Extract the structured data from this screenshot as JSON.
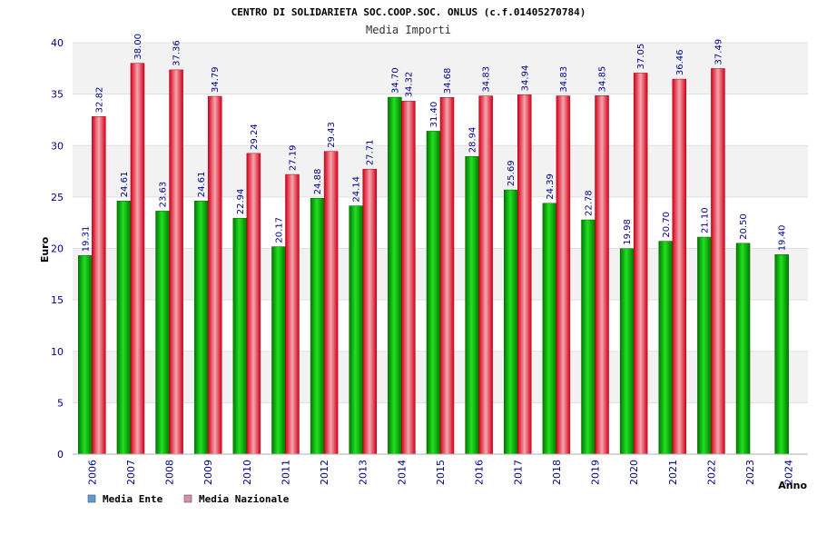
{
  "chart_data": {
    "type": "bar",
    "title": "CENTRO DI SOLIDARIETA SOC.COOP.SOC. ONLUS (c.f.01405270784)",
    "subtitle": "Media Importi",
    "xlabel": "Anno",
    "ylabel": "Euro",
    "ylim": [
      0,
      40
    ],
    "yticks": [
      0,
      5,
      10,
      15,
      20,
      25,
      30,
      35,
      40
    ],
    "grid": true,
    "legend_position": "bottom-left",
    "categories": [
      "2006",
      "2007",
      "2008",
      "2009",
      "2010",
      "2011",
      "2012",
      "2013",
      "2014",
      "2015",
      "2016",
      "2017",
      "2018",
      "2019",
      "2020",
      "2021",
      "2022",
      "2023",
      "2024"
    ],
    "series": [
      {
        "name": "Media Ente",
        "legend_color": "#5b9bd5",
        "bar_color": "#00a000",
        "values": [
          19.31,
          24.61,
          23.63,
          24.61,
          22.94,
          20.17,
          24.88,
          24.14,
          34.7,
          31.4,
          28.94,
          25.69,
          24.39,
          22.78,
          19.98,
          20.7,
          21.1,
          20.5,
          19.4
        ],
        "labels": [
          "19.31",
          "24.61",
          "23.63",
          "24.61",
          "22.94",
          "20.17",
          "24.88",
          "24.14",
          "34.70",
          "31.40",
          "28.94",
          "25.69",
          "24.39",
          "22.78",
          "19.98",
          "20.70",
          "21.10",
          "20.50",
          "19.40"
        ]
      },
      {
        "name": "Media Nazionale",
        "legend_color": "#d98cb3",
        "bar_color": "#e0202e",
        "values": [
          32.82,
          38.0,
          37.36,
          34.79,
          29.24,
          27.19,
          29.43,
          27.71,
          34.32,
          34.68,
          34.83,
          34.94,
          34.83,
          34.85,
          37.05,
          36.46,
          37.49,
          null,
          null
        ],
        "labels": [
          "32.82",
          "38.00",
          "37.36",
          "34.79",
          "29.24",
          "27.19",
          "29.43",
          "27.71",
          "34.32",
          "34.68",
          "34.83",
          "34.94",
          "34.83",
          "34.85",
          "37.05",
          "36.46",
          "37.49",
          null,
          null
        ]
      }
    ]
  }
}
